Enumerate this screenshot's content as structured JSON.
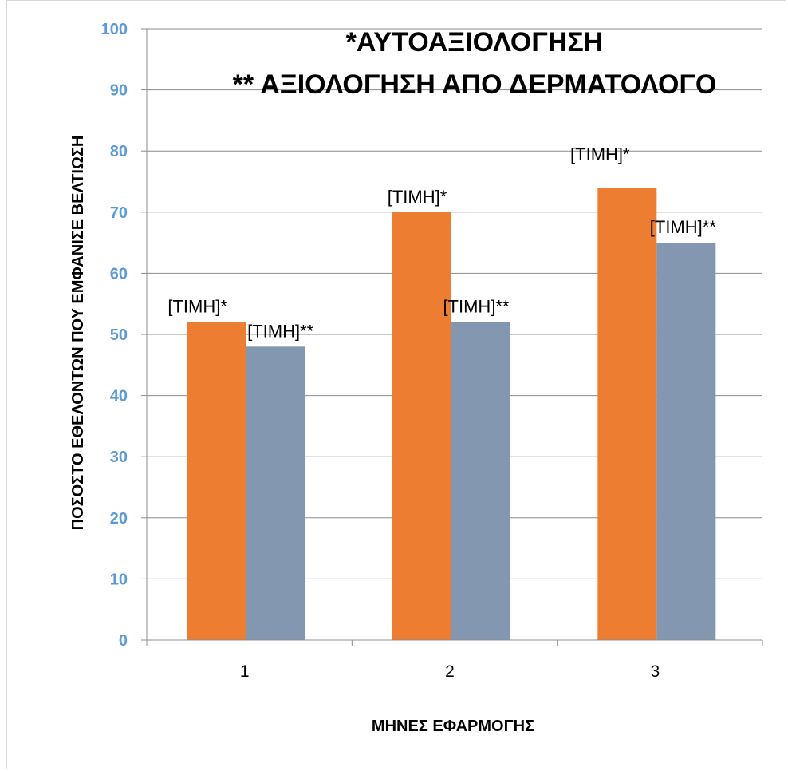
{
  "chart_data": {
    "type": "bar",
    "title_lines": [
      "*ΑΥΤΟΑΞΙΟΛΟΓΗΣΗ",
      "** ΑΞΙΟΛΟΓΗΣΗ ΑΠΟ ΔΕΡΜΑΤΟΛΟΓΟ"
    ],
    "xlabel": "ΜΗΝΕΣ ΕΦΑΡΜΟΓΗΣ",
    "ylabel": "ΠΟΣΟΣΤΟ ΕΘΕΛΟΝΤΩΝ ΠΟΥ ΕΜΦΑΝΙΣΕ ΒΕΛΤΙΩΣΗ",
    "categories": [
      "1",
      "2",
      "3"
    ],
    "ylim": [
      0,
      100
    ],
    "yticks": [
      "0",
      "10",
      "20",
      "30",
      "40",
      "50",
      "60",
      "70",
      "80",
      "90",
      "100"
    ],
    "grid": true,
    "series": [
      {
        "values": [
          52,
          70,
          74
        ],
        "color": "#ed7d31",
        "data_labels": [
          "[ΤΙΜΗ]*",
          "[ΤΙΜΗ]*",
          "[ΤΙΜΗ]*"
        ]
      },
      {
        "values": [
          48,
          52,
          65
        ],
        "color": "#8497b0",
        "data_labels": [
          "[ΤΙΜΗ]**",
          "[ΤΙΜΗ]**",
          "[ΤΙΜΗ]**"
        ]
      }
    ]
  }
}
